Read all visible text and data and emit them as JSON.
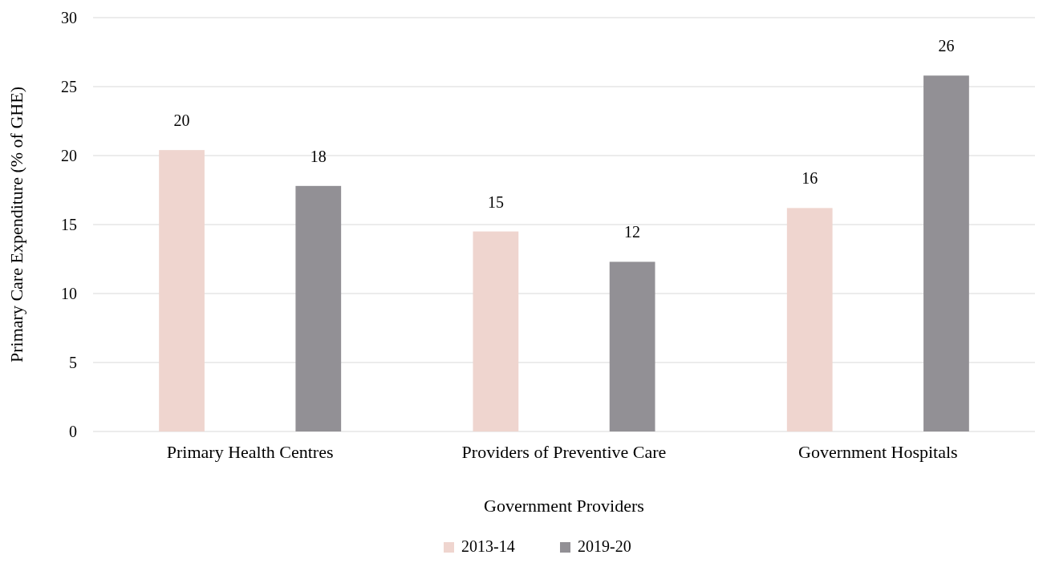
{
  "chart_data": {
    "type": "bar",
    "xlabel": "Government Providers",
    "ylabel": "Primary Care Expenditure (% of GHE)",
    "categories": [
      "Primary Health Centres",
      "Providers of Preventive Care",
      "Government Hospitals"
    ],
    "series": [
      {
        "name": "2013-14",
        "color": "#efd5cf",
        "values": [
          20.4,
          14.5,
          16.2
        ],
        "value_labels": [
          "20",
          "15",
          "16"
        ]
      },
      {
        "name": "2019-20",
        "color": "#929095",
        "values": [
          17.8,
          12.3,
          25.8
        ],
        "value_labels": [
          "18",
          "12",
          "26"
        ]
      }
    ],
    "ylim": [
      0,
      30
    ],
    "yticks": [
      0,
      5,
      10,
      15,
      20,
      25,
      30
    ],
    "grid": "y",
    "legend": "bottom"
  }
}
